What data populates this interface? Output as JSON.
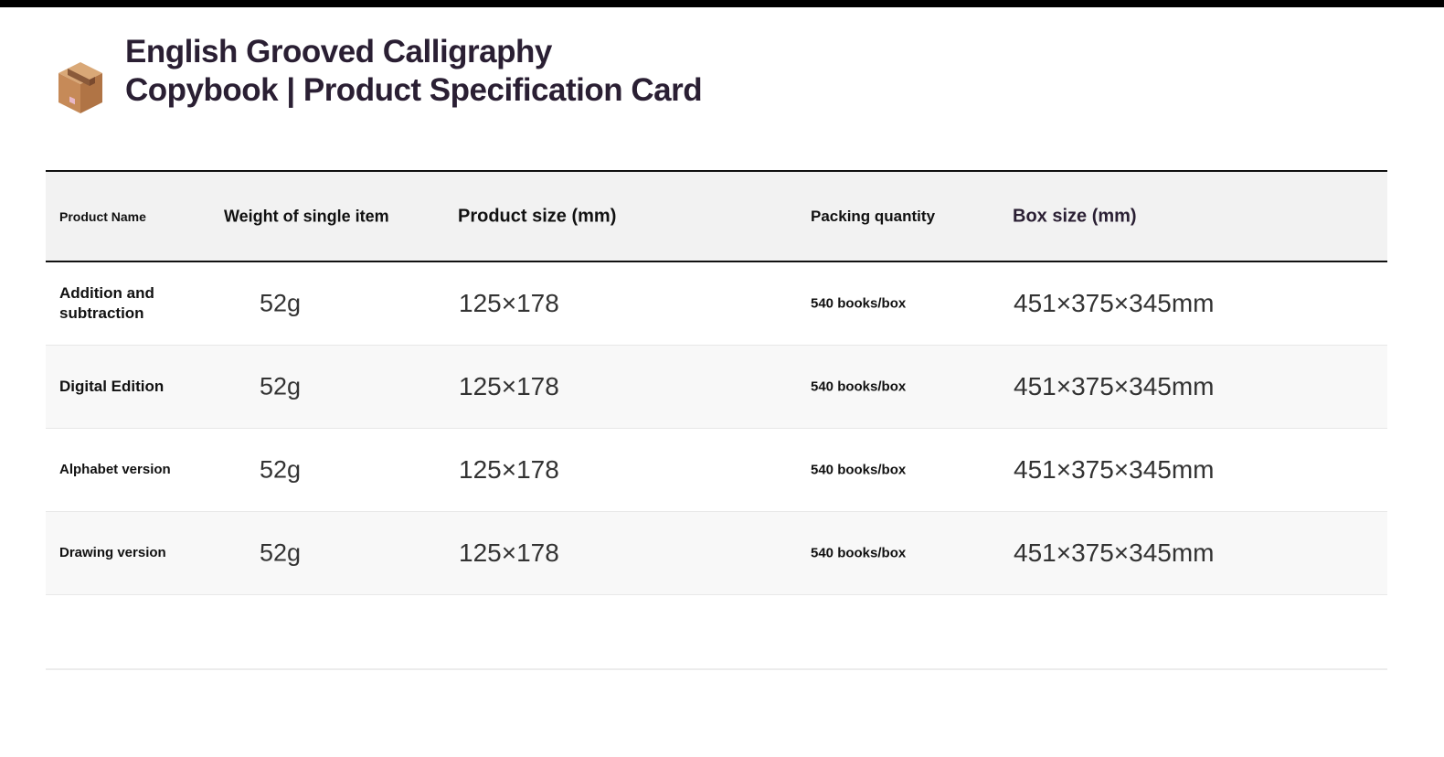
{
  "page": {
    "title": "English Grooved Calligraphy Copybook | Product Specification Card",
    "icon": "package-box-icon"
  },
  "table": {
    "headers": [
      "Product Name",
      "Weight of single item",
      "Product size (mm)",
      "Packing quantity",
      "Box size (mm)"
    ],
    "rows": [
      {
        "name": "Addition and subtraction",
        "weight": "52g",
        "size": "125×178",
        "packing": "540 books/box",
        "box": "451×375×345mm"
      },
      {
        "name": "Digital Edition",
        "weight": "52g",
        "size": "125×178",
        "packing": "540 books/box",
        "box": "451×375×345mm"
      },
      {
        "name": "Alphabet version",
        "weight": "52g",
        "size": "125×178",
        "packing": "540 books/box",
        "box": "451×375×345mm"
      },
      {
        "name": "Drawing version",
        "weight": "52g",
        "size": "125×178",
        "packing": "540 books/box",
        "box": "451×375×345mm"
      }
    ]
  }
}
